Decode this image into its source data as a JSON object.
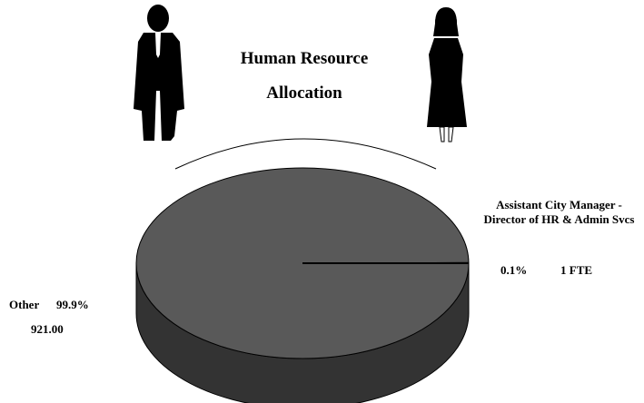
{
  "chart_data": {
    "type": "pie",
    "title": "Human Resource Allocation",
    "categories": [
      "Other",
      "Assistant City Manager - Director of HR & Admin Svcs"
    ],
    "values": [
      99.9,
      0.1
    ],
    "value_labels": [
      "99.9%",
      "0.1%"
    ],
    "count_labels": [
      "921.00",
      "1 FTE"
    ],
    "colors": [
      "#595959",
      "#595959"
    ],
    "side_color": "#333333"
  }
}
